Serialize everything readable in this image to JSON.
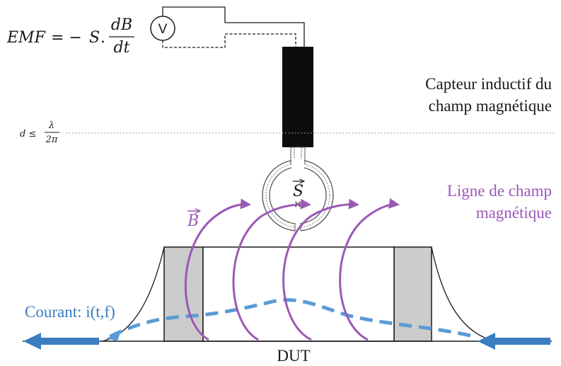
{
  "equation": {
    "lhs": "EMF",
    "equals_minus": "= −",
    "surface": "S",
    "dot": ".",
    "numerator": "dB",
    "denominator": "dt"
  },
  "voltmeter": {
    "symbol": "V"
  },
  "distance": {
    "d_le": "d ≤",
    "numerator": "λ",
    "denominator": "2π"
  },
  "sensor_label": {
    "line1": "Capteur inductif du",
    "line2": "champ magnétique"
  },
  "field_label": {
    "line1": "Ligne de champ",
    "line2": "magnétique"
  },
  "vector_b": "B",
  "vector_s": "S",
  "cross": "×",
  "current_label": "Courant: i(t,f)",
  "dut_label": "DUT",
  "colors": {
    "field": "#9b59b6",
    "current": "#4a90c8",
    "dark_text": "#1a1a1a",
    "gray_block": "#cccccc",
    "dotted_line": "#999999"
  }
}
